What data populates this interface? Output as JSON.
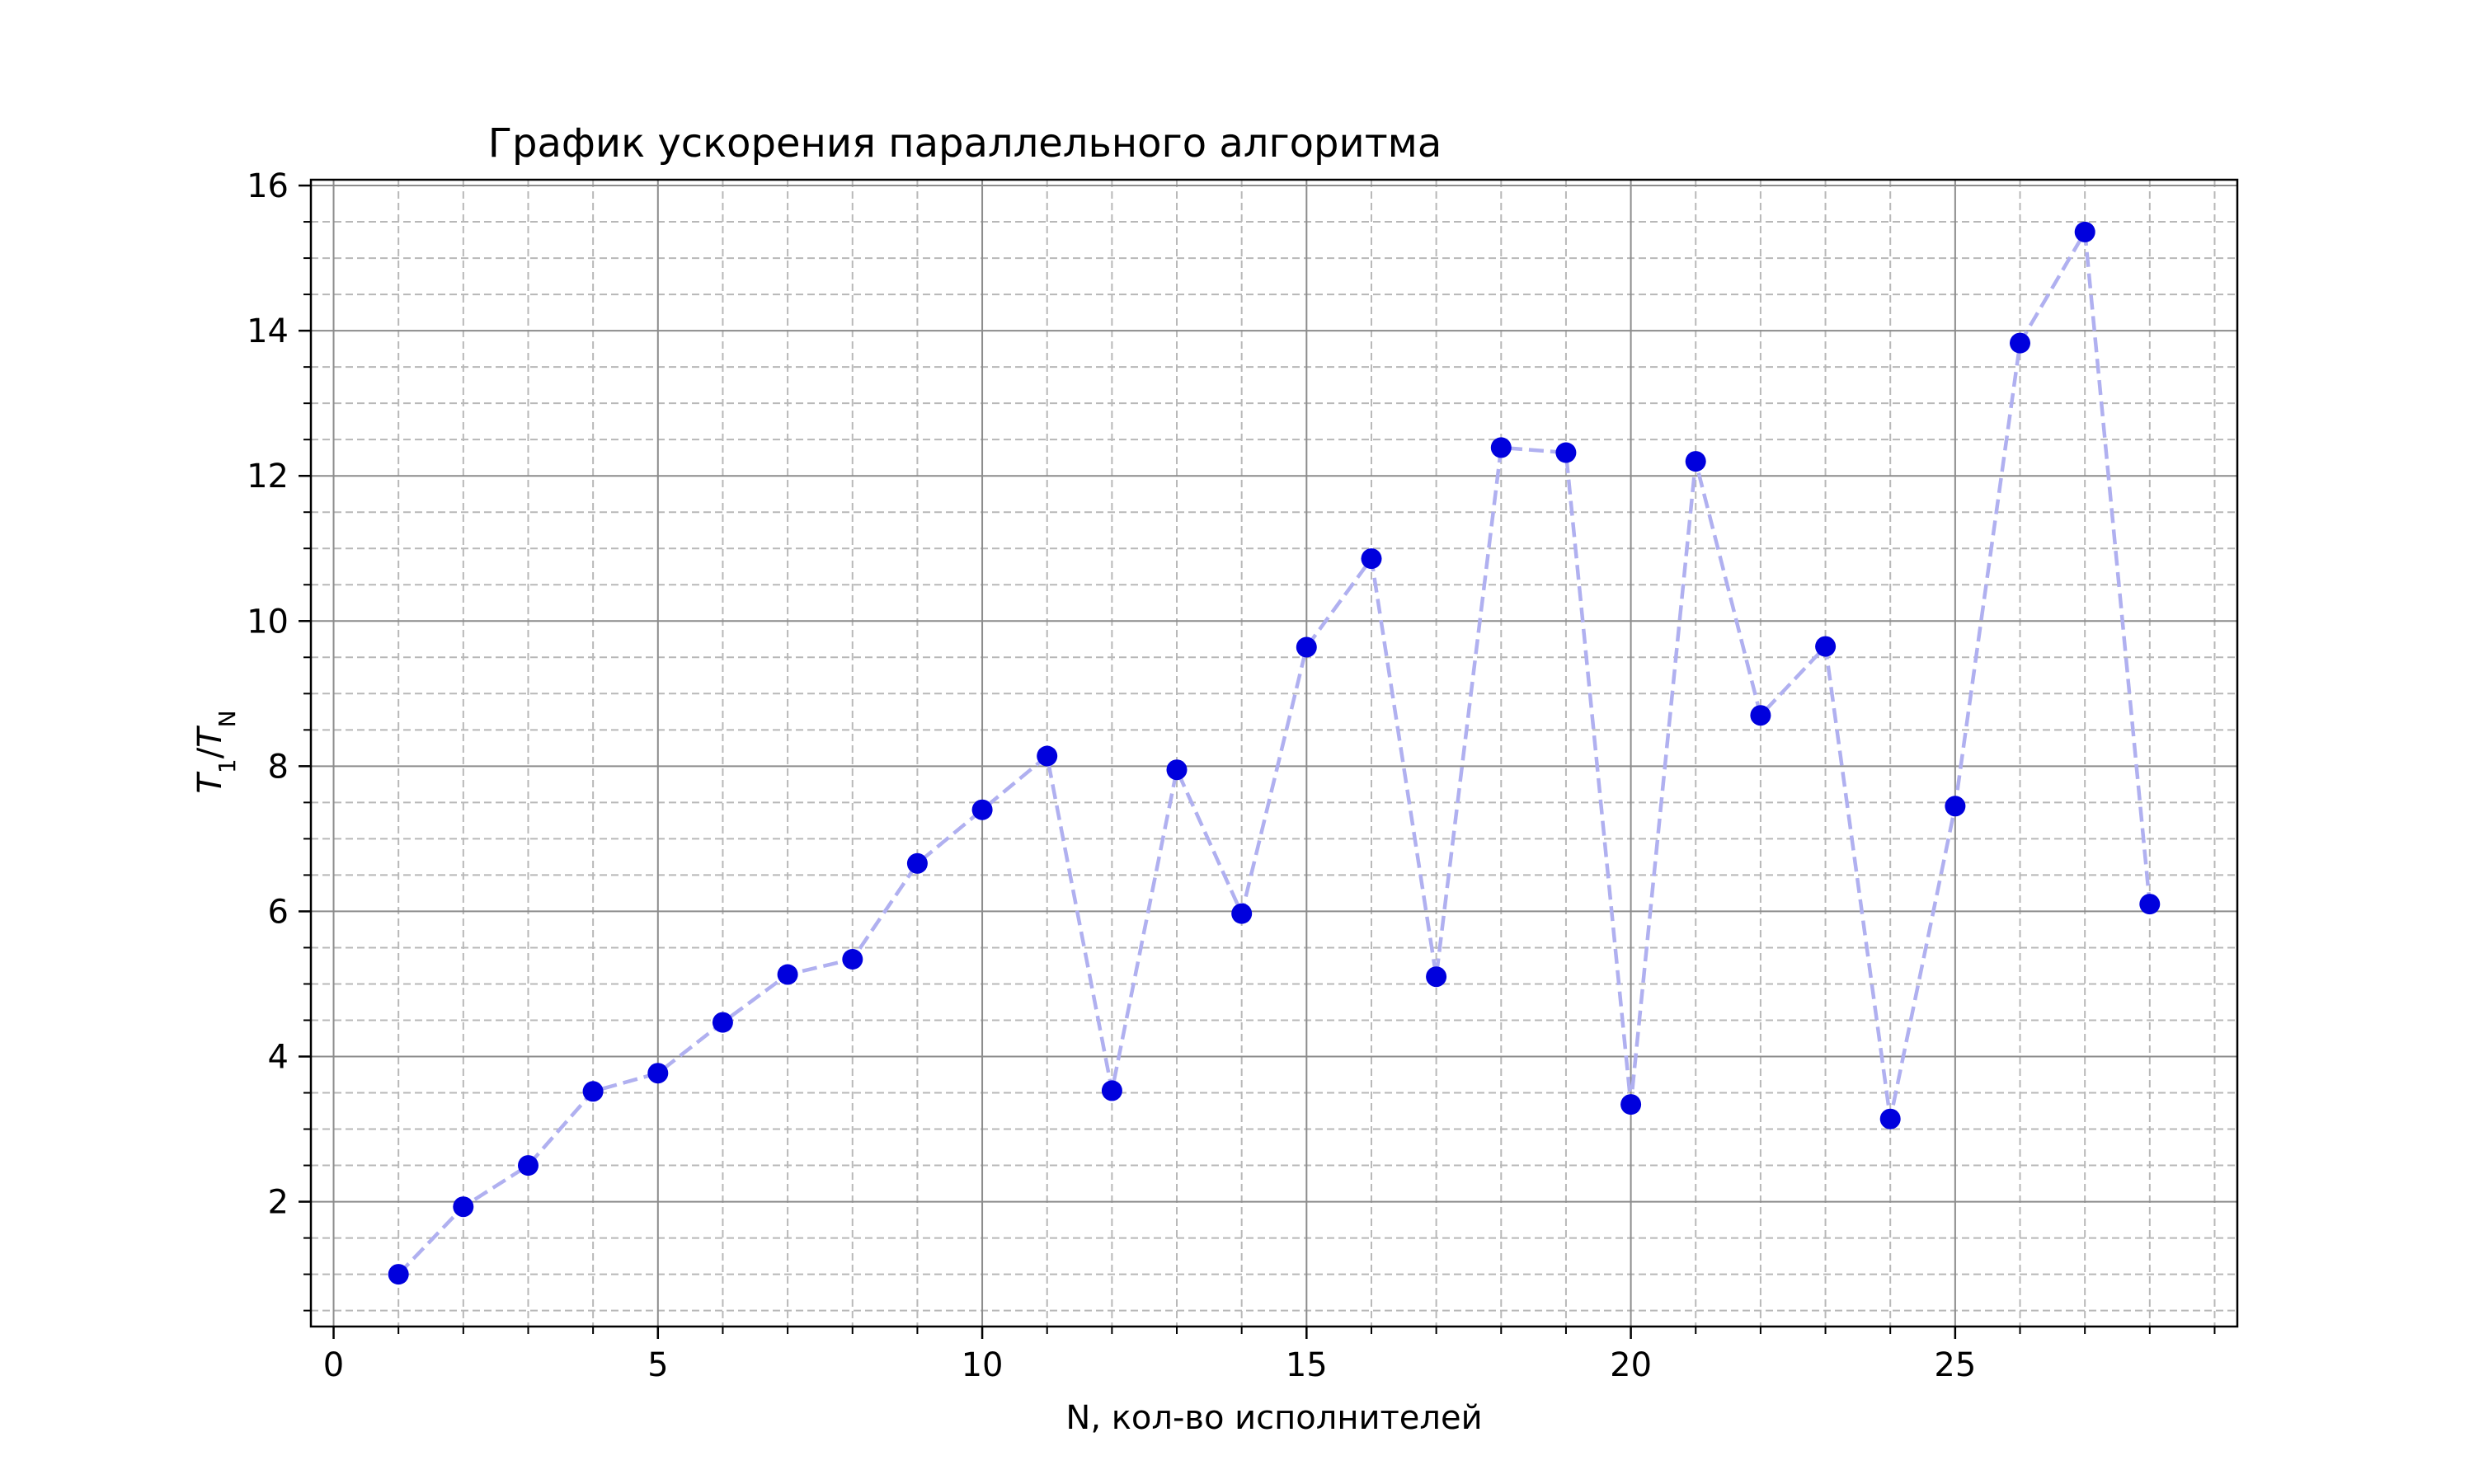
{
  "chart_data": {
    "type": "line",
    "title": "График ускорения параллельного алгоритма",
    "xlabel": "N, кол-во исполнителей",
    "ylabel": {
      "main": "T",
      "sub1": "1",
      "sep": "/",
      "main2": "T",
      "sub2": "N"
    },
    "xlim": [
      -0.35,
      29.35
    ],
    "ylim": [
      0.28,
      16.08
    ],
    "xticks": [
      0,
      5,
      10,
      15,
      20,
      25
    ],
    "yticks": [
      2,
      4,
      6,
      8,
      10,
      12,
      14,
      16
    ],
    "x_minor_step": 1,
    "y_minor_step": 0.5,
    "grid": {
      "major": true,
      "minor": true,
      "major_style": "solid",
      "minor_style": "dashed"
    },
    "series": [
      {
        "color": "#0000dd",
        "line_color": "#b0b0f0",
        "line_style": "dashed",
        "marker": "circle",
        "x": [
          1,
          2,
          3,
          4,
          5,
          6,
          7,
          8,
          9,
          10,
          11,
          12,
          13,
          14,
          15,
          16,
          17,
          18,
          19,
          20,
          21,
          22,
          23,
          24,
          25,
          26,
          27,
          28
        ],
        "y": [
          1.0,
          1.93,
          2.5,
          3.52,
          3.77,
          4.47,
          5.13,
          5.34,
          6.66,
          7.4,
          8.14,
          3.53,
          7.95,
          5.97,
          9.64,
          10.86,
          5.1,
          12.39,
          12.32,
          3.34,
          12.2,
          8.7,
          9.65,
          3.14,
          7.45,
          13.83,
          15.36,
          6.1
        ]
      }
    ]
  }
}
